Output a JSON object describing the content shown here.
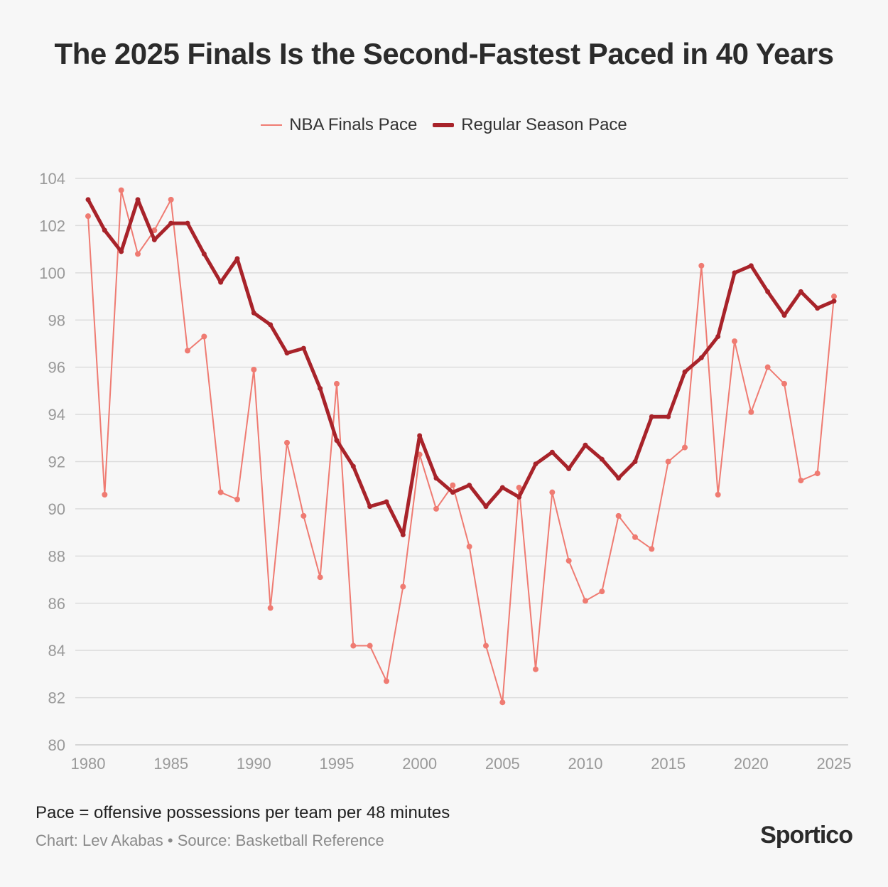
{
  "title": "The 2025 Finals Is the Second-Fastest Paced in 40 Years",
  "footnote": "Pace = offensive possessions per team per 48 minutes",
  "credit": "Chart: Lev Akabas • Source: Basketball Reference",
  "brand": "Sportico",
  "chart_data": {
    "type": "line",
    "title": "The 2025 Finals Is the Second-Fastest Paced in 40 Years",
    "xlabel": "",
    "ylabel": "",
    "xlim": [
      1980,
      2025
    ],
    "ylim": [
      80,
      104
    ],
    "x_ticks": [
      1980,
      1985,
      1990,
      1995,
      2000,
      2005,
      2010,
      2015,
      2020,
      2025
    ],
    "y_ticks": [
      80,
      82,
      84,
      86,
      88,
      90,
      92,
      94,
      96,
      98,
      100,
      102,
      104
    ],
    "grid": "horizontal",
    "legend_position": "top-center",
    "x": [
      1980,
      1981,
      1982,
      1983,
      1984,
      1985,
      1986,
      1987,
      1988,
      1989,
      1990,
      1991,
      1992,
      1993,
      1994,
      1995,
      1996,
      1997,
      1998,
      1999,
      2000,
      2001,
      2002,
      2003,
      2004,
      2005,
      2006,
      2007,
      2008,
      2009,
      2010,
      2011,
      2012,
      2013,
      2014,
      2015,
      2016,
      2017,
      2018,
      2019,
      2020,
      2021,
      2022,
      2023,
      2024,
      2025
    ],
    "series": [
      {
        "name": "NBA Finals Pace",
        "color": "#ef7b72",
        "style": "thin",
        "values": [
          102.4,
          90.6,
          103.5,
          100.8,
          101.8,
          103.1,
          96.7,
          97.3,
          90.7,
          90.4,
          95.9,
          85.8,
          92.8,
          89.7,
          87.1,
          95.3,
          84.2,
          84.2,
          82.7,
          86.7,
          92.3,
          90.0,
          91.0,
          88.4,
          84.2,
          81.8,
          90.9,
          83.2,
          90.7,
          87.8,
          86.1,
          86.5,
          89.7,
          88.8,
          88.3,
          92.0,
          92.6,
          100.3,
          90.6,
          97.1,
          94.1,
          96.0,
          95.3,
          91.2,
          91.5,
          99.0
        ]
      },
      {
        "name": "Regular Season Pace",
        "color": "#a8232a",
        "style": "thick",
        "values": [
          103.1,
          101.8,
          100.9,
          103.1,
          101.4,
          102.1,
          102.1,
          100.8,
          99.6,
          100.6,
          98.3,
          97.8,
          96.6,
          96.8,
          95.1,
          92.9,
          91.8,
          90.1,
          90.3,
          88.9,
          93.1,
          91.3,
          90.7,
          91.0,
          90.1,
          90.9,
          90.5,
          91.9,
          92.4,
          91.7,
          92.7,
          92.1,
          91.3,
          92.0,
          93.9,
          93.9,
          95.8,
          96.4,
          97.3,
          100.0,
          100.3,
          99.2,
          98.2,
          99.2,
          98.5,
          98.8
        ]
      }
    ]
  }
}
